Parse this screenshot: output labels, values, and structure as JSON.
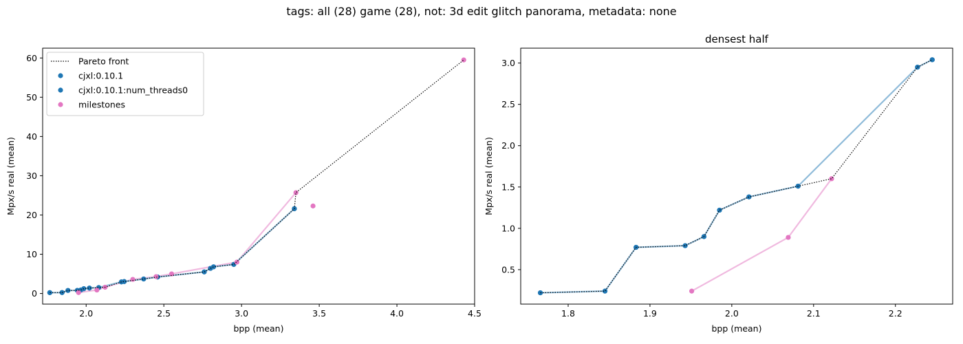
{
  "figure_title": "tags: all (28) game (28), not: 3d edit glitch panorama, metadata: none",
  "colors": {
    "blue": "#1f77b4",
    "blue_light": "#8fbbd9",
    "pink": "#e377c2",
    "pink_light": "#f0b9df",
    "front": "#000000"
  },
  "chart_data": [
    {
      "type": "scatter",
      "title": "",
      "xlabel": "bpp (mean)",
      "ylabel": "Mpx/s real (mean)",
      "xlim": [
        1.72,
        4.5
      ],
      "ylim": [
        -2.7,
        62.5
      ],
      "xticks": [
        2.0,
        2.5,
        3.0,
        3.5,
        4.0,
        4.5
      ],
      "xtick_labels": [
        "2.0",
        "2.5",
        "3.0",
        "3.5",
        "4.0",
        "4.5"
      ],
      "yticks": [
        0,
        10,
        20,
        30,
        40,
        50,
        60
      ],
      "ytick_labels": [
        "0",
        "10",
        "20",
        "30",
        "40",
        "50",
        "60"
      ],
      "grid": false,
      "legend": {
        "placement": "top-left",
        "entries": [
          {
            "label": "Pareto front",
            "kind": "line"
          },
          {
            "label": "cjxl:0.10.1",
            "kind": "marker",
            "color": "#1f77b4"
          },
          {
            "label": "cjxl:0.10.1:num_threads0",
            "kind": "marker",
            "color": "#1f77b4"
          },
          {
            "label": "milestones",
            "kind": "marker",
            "color": "#e377c2"
          }
        ]
      },
      "series": [
        {
          "name": "cjxl:0.10.1",
          "color": "#1f77b4",
          "x": [
            1.766,
            1.845,
            1.883,
            1.943,
            1.966,
            1.985,
            2.021,
            2.081,
            2.227,
            2.245,
            2.37,
            2.46,
            2.76,
            2.8,
            2.82,
            2.95,
            3.34
          ],
          "y": [
            0.22,
            0.24,
            0.77,
            0.79,
            0.9,
            1.22,
            1.38,
            1.51,
            2.95,
            3.04,
            3.7,
            4.2,
            5.5,
            6.4,
            6.8,
            7.4,
            21.6
          ]
        },
        {
          "name": "cjxl:0.10.1:num_threads0",
          "color": "#1f77b4",
          "x": [
            1.766,
            1.845,
            1.883,
            1.943,
            1.966,
            1.985,
            2.021,
            2.081,
            2.227,
            2.245,
            2.37,
            2.46,
            2.76,
            2.8,
            2.82,
            2.95,
            3.34
          ],
          "y": [
            0.22,
            0.24,
            0.77,
            0.79,
            0.9,
            1.22,
            1.38,
            1.51,
            2.95,
            3.04,
            3.7,
            4.2,
            5.5,
            6.4,
            6.8,
            7.4,
            21.6
          ]
        },
        {
          "name": "milestones",
          "color": "#e377c2",
          "x": [
            1.951,
            2.069,
            2.122,
            2.3,
            2.45,
            2.55,
            2.97,
            3.35,
            3.46,
            4.43
          ],
          "y": [
            0.24,
            0.89,
            1.6,
            3.6,
            4.3,
            5.0,
            8.0,
            25.7,
            22.3,
            59.5
          ]
        }
      ],
      "pareto_front": {
        "x": [
          1.766,
          1.845,
          1.883,
          1.943,
          1.966,
          1.985,
          2.021,
          2.081,
          2.122,
          2.227,
          2.245,
          2.37,
          2.46,
          2.76,
          2.8,
          2.82,
          2.95,
          3.34,
          3.35,
          4.43
        ],
        "y": [
          0.22,
          0.24,
          0.77,
          0.79,
          0.9,
          1.22,
          1.38,
          1.51,
          1.6,
          2.95,
          3.04,
          3.7,
          4.2,
          5.5,
          6.4,
          6.8,
          7.4,
          21.6,
          25.7,
          59.5
        ]
      }
    },
    {
      "type": "scatter",
      "title": "densest half",
      "xlabel": "bpp (mean)",
      "ylabel": "Mpx/s real (mean)",
      "xlim": [
        1.742,
        2.27
      ],
      "ylim": [
        0.083,
        3.18
      ],
      "xticks": [
        1.8,
        1.9,
        2.0,
        2.1,
        2.2
      ],
      "xtick_labels": [
        "1.8",
        "1.9",
        "2.0",
        "2.1",
        "2.2"
      ],
      "yticks": [
        0.5,
        1.0,
        1.5,
        2.0,
        2.5,
        3.0
      ],
      "ytick_labels": [
        "0.5",
        "1.0",
        "1.5",
        "2.0",
        "2.5",
        "3.0"
      ],
      "grid": false,
      "series": [
        {
          "name": "cjxl:0.10.1",
          "color": "#1f77b4",
          "x": [
            1.766,
            1.845,
            1.883,
            1.943,
            1.966,
            1.985,
            2.021,
            2.081,
            2.227,
            2.245
          ],
          "y": [
            0.22,
            0.24,
            0.77,
            0.79,
            0.9,
            1.22,
            1.38,
            1.51,
            2.95,
            3.04
          ]
        },
        {
          "name": "cjxl:0.10.1:num_threads0",
          "color": "#1f77b4",
          "x": [
            1.766,
            1.845,
            1.883,
            1.943,
            1.966,
            1.985,
            2.021,
            2.081,
            2.227,
            2.245
          ],
          "y": [
            0.22,
            0.24,
            0.77,
            0.79,
            0.9,
            1.22,
            1.38,
            1.51,
            2.95,
            3.04
          ]
        },
        {
          "name": "milestones",
          "color": "#e377c2",
          "x": [
            1.951,
            2.069,
            2.122
          ],
          "y": [
            0.24,
            0.89,
            1.6
          ]
        }
      ],
      "pareto_front": {
        "x": [
          1.766,
          1.845,
          1.883,
          1.943,
          1.966,
          1.985,
          2.021,
          2.081,
          2.122,
          2.227,
          2.245
        ],
        "y": [
          0.22,
          0.24,
          0.77,
          0.79,
          0.9,
          1.22,
          1.38,
          1.51,
          1.6,
          2.95,
          3.04
        ]
      }
    }
  ]
}
